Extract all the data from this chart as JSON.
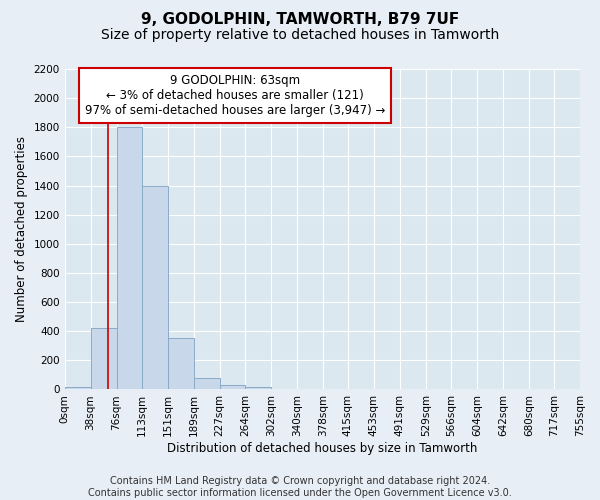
{
  "title": "9, GODOLPHIN, TAMWORTH, B79 7UF",
  "subtitle": "Size of property relative to detached houses in Tamworth",
  "xlabel": "Distribution of detached houses by size in Tamworth",
  "ylabel": "Number of detached properties",
  "footer_line1": "Contains HM Land Registry data © Crown copyright and database right 2024.",
  "footer_line2": "Contains public sector information licensed under the Open Government Licence v3.0.",
  "bin_edges": [
    0,
    38,
    76,
    113,
    151,
    189,
    227,
    264,
    302,
    340,
    378,
    415,
    453,
    491,
    529,
    566,
    604,
    642,
    680,
    717,
    755
  ],
  "bar_heights": [
    15,
    420,
    1800,
    1400,
    350,
    80,
    30,
    20,
    5,
    2,
    1,
    0,
    0,
    0,
    0,
    0,
    0,
    0,
    0,
    0
  ],
  "bar_color": "#c8d8ea",
  "bar_edge_color": "#8aaac8",
  "property_size": 63,
  "vline_color": "#cc0000",
  "annotation_line1": "9 GODOLPHIN: 63sqm",
  "annotation_line2": "← 3% of detached houses are smaller (121)",
  "annotation_line3": "97% of semi-detached houses are larger (3,947) →",
  "annotation_box_color": "#cc0000",
  "annotation_text_color": "#000000",
  "ylim": [
    0,
    2200
  ],
  "yticks": [
    0,
    200,
    400,
    600,
    800,
    1000,
    1200,
    1400,
    1600,
    1800,
    2000,
    2200
  ],
  "tick_labels": [
    "0sqm",
    "38sqm",
    "76sqm",
    "113sqm",
    "151sqm",
    "189sqm",
    "227sqm",
    "264sqm",
    "302sqm",
    "340sqm",
    "378sqm",
    "415sqm",
    "453sqm",
    "491sqm",
    "529sqm",
    "566sqm",
    "604sqm",
    "642sqm",
    "680sqm",
    "717sqm",
    "755sqm"
  ],
  "bg_color": "#e8eef5",
  "plot_bg_color": "#dce8f0",
  "grid_color": "#ffffff",
  "title_fontsize": 11,
  "subtitle_fontsize": 10,
  "axis_label_fontsize": 8.5,
  "tick_fontsize": 7.5,
  "footer_fontsize": 7
}
